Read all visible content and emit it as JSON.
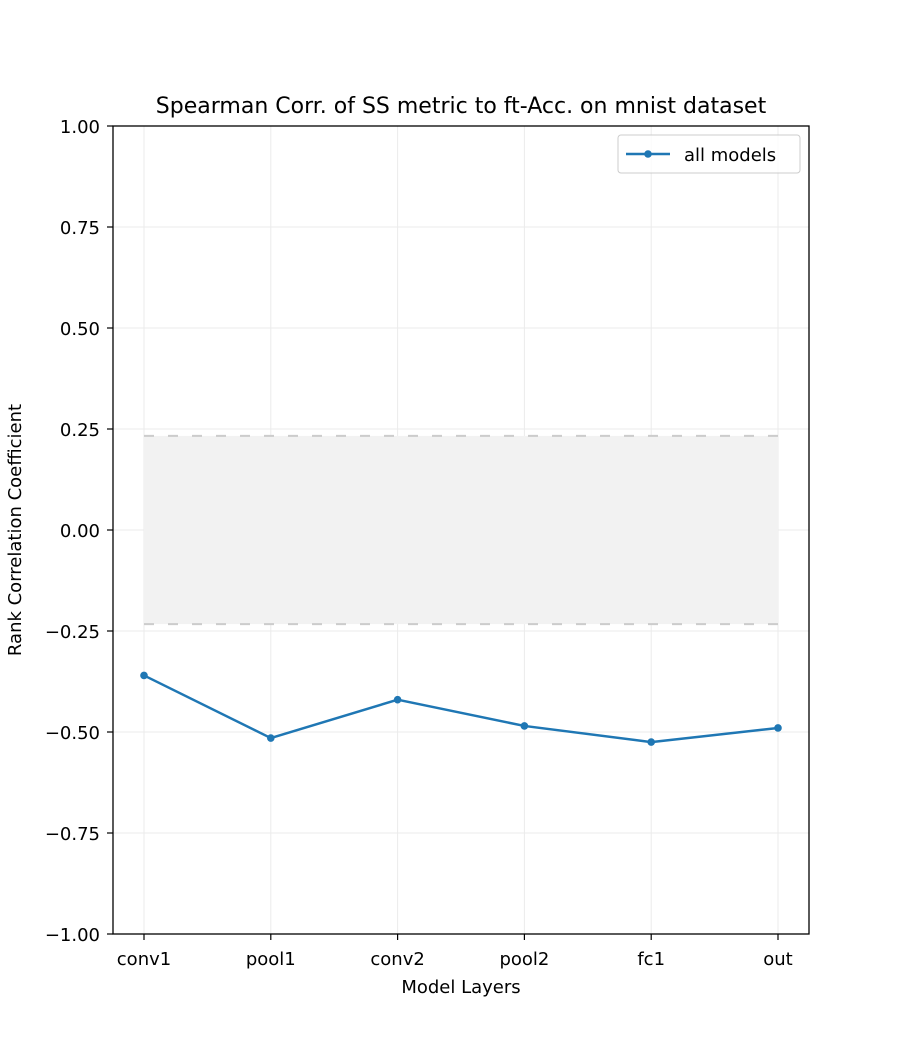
{
  "chart_data": {
    "type": "line",
    "title": "Spearman Corr. of SS metric to ft-Acc. on mnist dataset",
    "xlabel": "Model Layers",
    "ylabel": "Rank Correlation Coefficient",
    "categories": [
      "conv1",
      "pool1",
      "conv2",
      "pool2",
      "fc1",
      "out"
    ],
    "series": [
      {
        "name": "all models",
        "color": "#1f77b4",
        "values": [
          -0.36,
          -0.515,
          -0.42,
          -0.485,
          -0.525,
          -0.49
        ]
      }
    ],
    "band": {
      "lower": -0.233,
      "upper": 0.233,
      "fill": "#f2f2f2",
      "edge_color": "#cccccc",
      "edge_style": "dashed"
    },
    "ylim": [
      -1.0,
      1.0
    ],
    "yticks": [
      -1.0,
      -0.75,
      -0.5,
      -0.25,
      0.0,
      0.25,
      0.5,
      0.75,
      1.0
    ],
    "ytick_labels": [
      "−1.00",
      "−0.75",
      "−0.50",
      "−0.25",
      "0.00",
      "0.25",
      "0.50",
      "0.75",
      "1.00"
    ],
    "grid": true,
    "legend_position": "top-right"
  }
}
